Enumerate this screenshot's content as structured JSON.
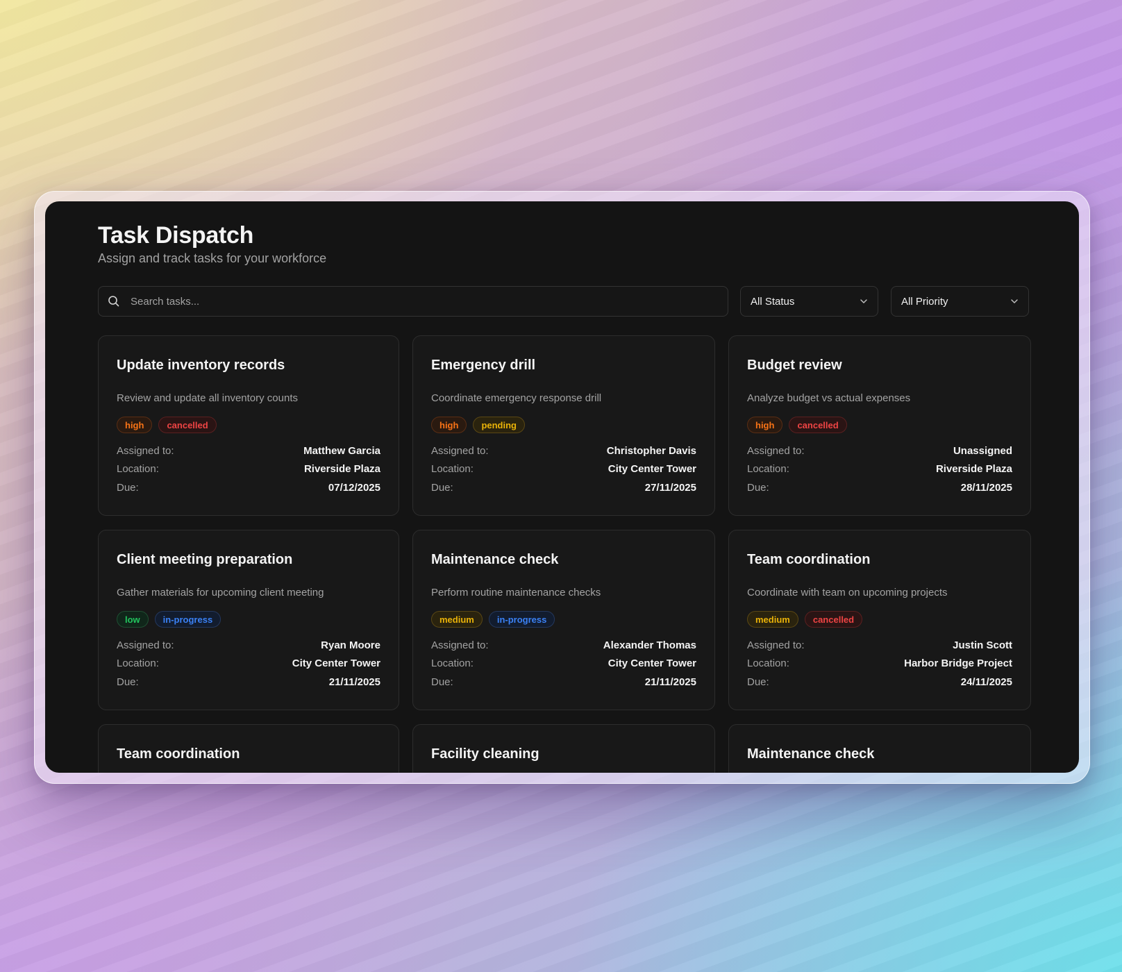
{
  "header": {
    "title": "Task Dispatch",
    "subtitle": "Assign and track tasks for your workforce"
  },
  "search": {
    "placeholder": "Search tasks...",
    "value": ""
  },
  "filters": {
    "status": {
      "selected": "All Status"
    },
    "priority": {
      "selected": "All Priority"
    }
  },
  "labels": {
    "assigned": "Assigned to:",
    "location": "Location:",
    "due": "Due:"
  },
  "badge_colors": {
    "high": {
      "text": "#f97316",
      "bg": "#2a1a10",
      "border": "#5a2e14"
    },
    "medium": {
      "text": "#eab308",
      "bg": "#2a230e",
      "border": "#5a4714"
    },
    "low": {
      "text": "#22c55e",
      "bg": "#10261a",
      "border": "#1f4e32"
    },
    "cancelled": {
      "text": "#ef4444",
      "bg": "#2a1414",
      "border": "#5a2020"
    },
    "pending": {
      "text": "#eab308",
      "bg": "#2a230e",
      "border": "#5a4714"
    },
    "in-progress": {
      "text": "#3b82f6",
      "bg": "#121c2e",
      "border": "#24385e"
    }
  },
  "tasks": [
    {
      "title": "Update inventory records",
      "description": "Review and update all inventory counts",
      "priority": "high",
      "status": "cancelled",
      "assigned": "Matthew Garcia",
      "location": "Riverside Plaza",
      "due": "07/12/2025"
    },
    {
      "title": "Emergency drill",
      "description": "Coordinate emergency response drill",
      "priority": "high",
      "status": "pending",
      "assigned": "Christopher Davis",
      "location": "City Center Tower",
      "due": "27/11/2025"
    },
    {
      "title": "Budget review",
      "description": "Analyze budget vs actual expenses",
      "priority": "high",
      "status": "cancelled",
      "assigned": "Unassigned",
      "location": "Riverside Plaza",
      "due": "28/11/2025"
    },
    {
      "title": "Client meeting preparation",
      "description": "Gather materials for upcoming client meeting",
      "priority": "low",
      "status": "in-progress",
      "assigned": "Ryan Moore",
      "location": "City Center Tower",
      "due": "21/11/2025"
    },
    {
      "title": "Maintenance check",
      "description": "Perform routine maintenance checks",
      "priority": "medium",
      "status": "in-progress",
      "assigned": "Alexander Thomas",
      "location": "City Center Tower",
      "due": "21/11/2025"
    },
    {
      "title": "Team coordination",
      "description": "Coordinate with team on upcoming projects",
      "priority": "medium",
      "status": "cancelled",
      "assigned": "Justin Scott",
      "location": "Harbor Bridge Project",
      "due": "24/11/2025"
    },
    {
      "title": "Team coordination"
    },
    {
      "title": "Facility cleaning"
    },
    {
      "title": "Maintenance check"
    }
  ]
}
